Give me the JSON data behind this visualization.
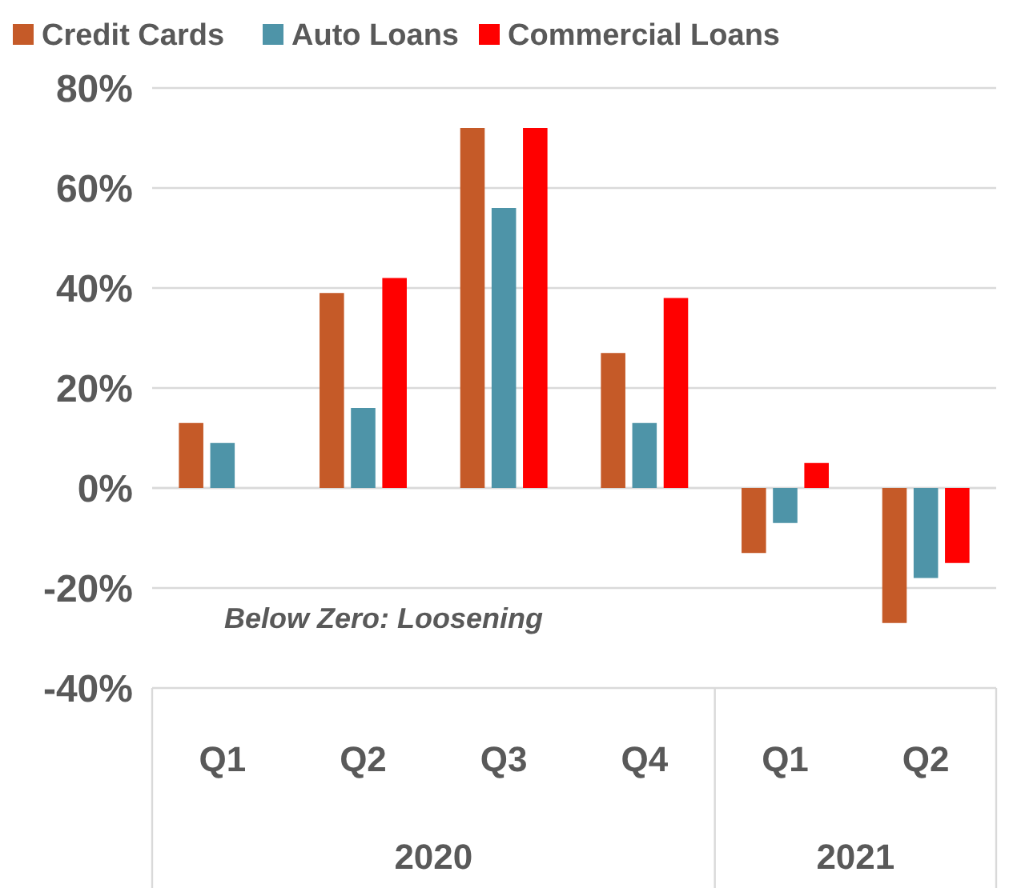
{
  "chart_data": {
    "type": "bar",
    "categories": [
      "Q1",
      "Q2",
      "Q3",
      "Q4",
      "Q1",
      "Q2"
    ],
    "series": [
      {
        "name": "Credit Cards",
        "color": "#c55a28",
        "values": [
          13,
          39,
          72,
          27,
          -13,
          -27
        ]
      },
      {
        "name": "Auto Loans",
        "color": "#4e94a8",
        "values": [
          9,
          16,
          56,
          13,
          -7,
          -18
        ]
      },
      {
        "name": "Commercial Loans",
        "color": "#ff0000",
        "values": [
          null,
          42,
          72,
          38,
          5,
          -15
        ]
      }
    ],
    "ylim": [
      -40,
      80
    ],
    "yticks": [
      {
        "value": -40,
        "label": "-40%"
      },
      {
        "value": -20,
        "label": "-20%"
      },
      {
        "value": 0,
        "label": "0%"
      },
      {
        "value": 20,
        "label": "20%"
      },
      {
        "value": 40,
        "label": "40%"
      },
      {
        "value": 60,
        "label": "60%"
      },
      {
        "value": 80,
        "label": "80%"
      }
    ],
    "grid": "y",
    "legend": "top",
    "annotations": [
      "Below Zero: Loosening",
      "2020",
      "2021"
    ]
  }
}
